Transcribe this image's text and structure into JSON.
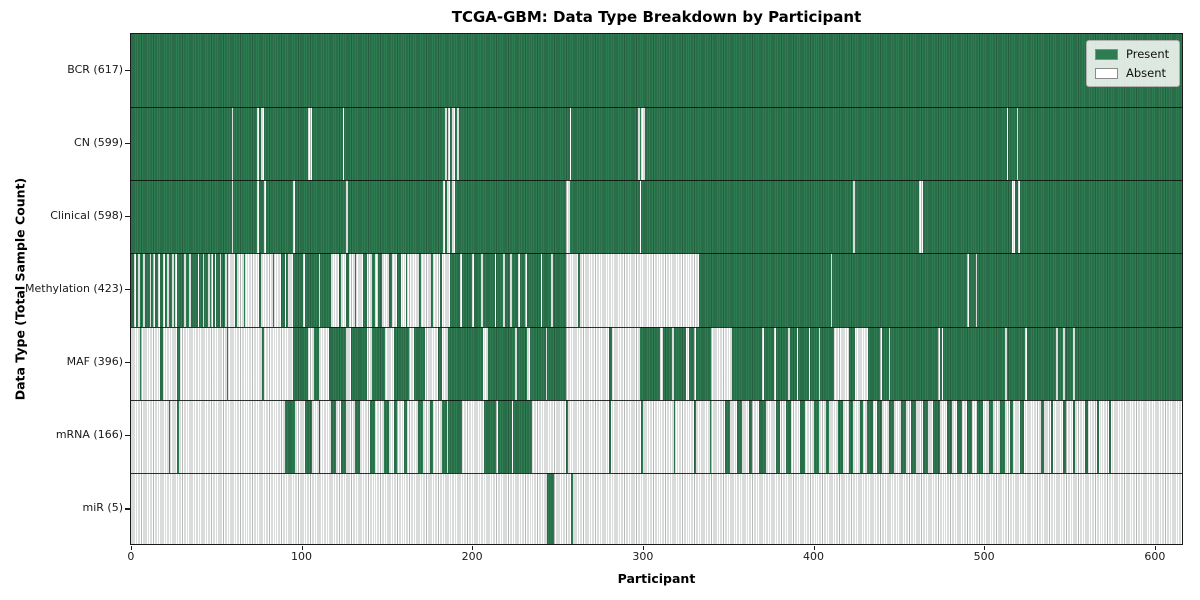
{
  "chart_data": {
    "type": "heatmap",
    "title": "TCGA-GBM: Data Type Breakdown by Participant",
    "xlabel": "Participant",
    "ylabel": "Data Type (Total Sample Count)",
    "n_participants": 617,
    "x_ticks": [
      0,
      100,
      200,
      300,
      400,
      500,
      600
    ],
    "grid": false,
    "colors": {
      "present": "#2e7d52",
      "absent": "#ffffff",
      "axis": "#1a1a1a",
      "legend_border": "#b0b0b0"
    },
    "legend": {
      "position": "upper right",
      "entries": [
        {
          "label": "Present",
          "color": "#2e7d52"
        },
        {
          "label": "Absent",
          "color": "#ffffff"
        }
      ]
    },
    "rows": [
      {
        "data_type": "BCR",
        "total_samples": 617,
        "tick_label": "BCR (617)",
        "absent_runs": []
      },
      {
        "data_type": "CN",
        "total_samples": 599,
        "tick_label": "CN (599)",
        "absent_runs": [
          [
            59,
            1
          ],
          [
            74,
            1
          ],
          [
            76,
            2
          ],
          [
            104,
            2
          ],
          [
            124,
            1
          ],
          [
            184,
            1
          ],
          [
            186,
            1
          ],
          [
            188,
            2
          ],
          [
            191,
            1
          ],
          [
            257,
            1
          ],
          [
            297,
            1
          ],
          [
            299,
            2
          ],
          [
            513,
            1
          ],
          [
            519,
            1
          ]
        ]
      },
      {
        "data_type": "Clinical",
        "total_samples": 598,
        "tick_label": "Clinical (598)",
        "absent_runs": [
          [
            59,
            1
          ],
          [
            74,
            1
          ],
          [
            78,
            1
          ],
          [
            95,
            1
          ],
          [
            126,
            1
          ],
          [
            183,
            1
          ],
          [
            185,
            2
          ],
          [
            188,
            2
          ],
          [
            255,
            2
          ],
          [
            298,
            1
          ],
          [
            423,
            1
          ],
          [
            462,
            2
          ],
          [
            516,
            2
          ],
          [
            520,
            1
          ]
        ]
      },
      {
        "data_type": "Methylation",
        "total_samples": 423,
        "tick_label": "Methylation (423)",
        "absent_runs": [
          [
            2,
            1
          ],
          [
            4,
            1
          ],
          [
            7,
            1
          ],
          [
            11,
            1
          ],
          [
            13,
            1
          ],
          [
            16,
            1
          ],
          [
            19,
            1
          ],
          [
            21,
            1
          ],
          [
            24,
            1
          ],
          [
            26,
            1
          ],
          [
            31,
            1
          ],
          [
            34,
            1
          ],
          [
            39,
            1
          ],
          [
            42,
            1
          ],
          [
            45,
            1
          ],
          [
            47,
            1
          ],
          [
            49,
            1
          ],
          [
            52,
            1
          ],
          [
            55,
            1
          ],
          [
            57,
            4
          ],
          [
            62,
            4
          ],
          [
            67,
            8
          ],
          [
            76,
            7
          ],
          [
            84,
            4
          ],
          [
            90,
            1
          ],
          [
            92,
            3
          ],
          [
            101,
            1
          ],
          [
            110,
            1
          ],
          [
            117,
            5
          ],
          [
            123,
            3
          ],
          [
            128,
            3
          ],
          [
            132,
            4
          ],
          [
            138,
            3
          ],
          [
            143,
            2
          ],
          [
            147,
            4
          ],
          [
            153,
            3
          ],
          [
            158,
            3
          ],
          [
            162,
            7
          ],
          [
            170,
            6
          ],
          [
            177,
            4
          ],
          [
            182,
            5
          ],
          [
            193,
            1
          ],
          [
            200,
            1
          ],
          [
            205,
            1
          ],
          [
            213,
            1
          ],
          [
            218,
            1
          ],
          [
            222,
            1
          ],
          [
            227,
            1
          ],
          [
            231,
            1
          ],
          [
            240,
            1
          ],
          [
            246,
            1
          ],
          [
            255,
            7
          ],
          [
            263,
            70
          ],
          [
            410,
            1
          ],
          [
            490,
            1
          ],
          [
            495,
            1
          ]
        ]
      },
      {
        "data_type": "MAF",
        "total_samples": 396,
        "tick_label": "MAF (396)",
        "absent_runs": [
          [
            0,
            5
          ],
          [
            6,
            11
          ],
          [
            19,
            8
          ],
          [
            29,
            27
          ],
          [
            57,
            20
          ],
          [
            78,
            17
          ],
          [
            104,
            3
          ],
          [
            110,
            6
          ],
          [
            126,
            3
          ],
          [
            138,
            3
          ],
          [
            149,
            5
          ],
          [
            163,
            3
          ],
          [
            172,
            8
          ],
          [
            182,
            4
          ],
          [
            206,
            3
          ],
          [
            225,
            1
          ],
          [
            232,
            2
          ],
          [
            243,
            1
          ],
          [
            255,
            25
          ],
          [
            282,
            16
          ],
          [
            310,
            2
          ],
          [
            317,
            1
          ],
          [
            325,
            2
          ],
          [
            330,
            1
          ],
          [
            340,
            12
          ],
          [
            370,
            1
          ],
          [
            377,
            1
          ],
          [
            385,
            1
          ],
          [
            390,
            1
          ],
          [
            397,
            1
          ],
          [
            403,
            1
          ],
          [
            412,
            9
          ],
          [
            424,
            8
          ],
          [
            439,
            1
          ],
          [
            444,
            1
          ],
          [
            473,
            1
          ],
          [
            475,
            1
          ],
          [
            512,
            1
          ],
          [
            524,
            1
          ],
          [
            542,
            1
          ],
          [
            546,
            1
          ],
          [
            552,
            1
          ]
        ]
      },
      {
        "data_type": "mRNA",
        "total_samples": 166,
        "tick_label": "mRNA (166)",
        "present_runs": [
          [
            22,
            1
          ],
          [
            27,
            1
          ],
          [
            90,
            6
          ],
          [
            102,
            4
          ],
          [
            110,
            1
          ],
          [
            117,
            3
          ],
          [
            123,
            3
          ],
          [
            131,
            3
          ],
          [
            140,
            3
          ],
          [
            148,
            3
          ],
          [
            154,
            2
          ],
          [
            160,
            2
          ],
          [
            168,
            3
          ],
          [
            175,
            2
          ],
          [
            182,
            3
          ],
          [
            186,
            8
          ],
          [
            207,
            7
          ],
          [
            215,
            8
          ],
          [
            224,
            11
          ],
          [
            255,
            1
          ],
          [
            280,
            1
          ],
          [
            299,
            1
          ],
          [
            318,
            1
          ],
          [
            330,
            1
          ],
          [
            339,
            1
          ],
          [
            348,
            3
          ],
          [
            355,
            3
          ],
          [
            362,
            2
          ],
          [
            368,
            4
          ],
          [
            378,
            2
          ],
          [
            384,
            3
          ],
          [
            392,
            3
          ],
          [
            400,
            3
          ],
          [
            407,
            2
          ],
          [
            414,
            3
          ],
          [
            421,
            2
          ],
          [
            427,
            2
          ],
          [
            431,
            4
          ],
          [
            437,
            3
          ],
          [
            444,
            3
          ],
          [
            451,
            3
          ],
          [
            457,
            3
          ],
          [
            464,
            3
          ],
          [
            470,
            4
          ],
          [
            478,
            3
          ],
          [
            484,
            3
          ],
          [
            490,
            3
          ],
          [
            496,
            3
          ],
          [
            503,
            2
          ],
          [
            509,
            3
          ],
          [
            515,
            2
          ],
          [
            521,
            2
          ],
          [
            533,
            2
          ],
          [
            539,
            1
          ],
          [
            546,
            2
          ],
          [
            552,
            1
          ],
          [
            559,
            2
          ],
          [
            566,
            1
          ],
          [
            573,
            1
          ]
        ]
      },
      {
        "data_type": "miR",
        "total_samples": 5,
        "tick_label": "miR (5)",
        "present_runs": [
          [
            244,
            4
          ],
          [
            258,
            1
          ]
        ]
      }
    ]
  }
}
